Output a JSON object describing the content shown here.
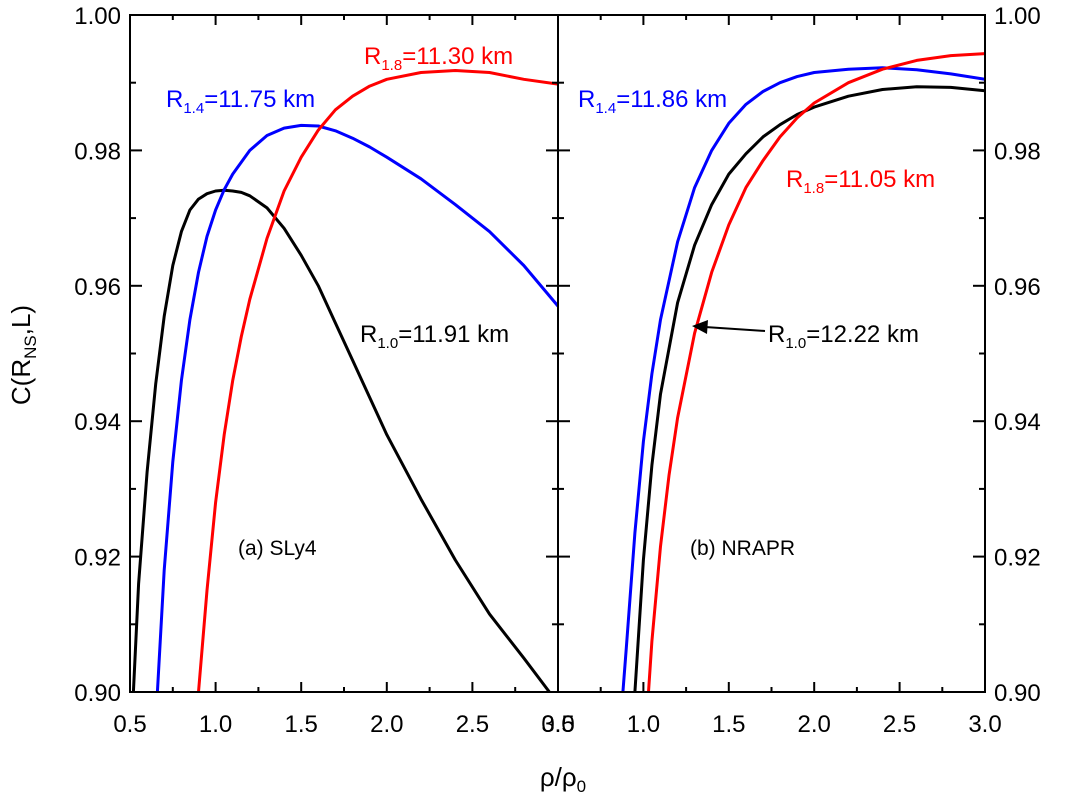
{
  "chart_data": [
    {
      "type": "line",
      "panel_label": "(a) SLy4",
      "xlabel": "ρ/ρ",
      "xlabel_sub": "0",
      "ylabel": "C(R",
      "ylabel_sub": "NS",
      "ylabel_end": ",L)",
      "xlim": [
        0.5,
        3.0
      ],
      "ylim": [
        0.9,
        1.0
      ],
      "xticks": [
        "0.5",
        "1.0",
        "1.5",
        "2.0",
        "2.5",
        "3.0"
      ],
      "yticks": [
        "0.90",
        "0.92",
        "0.94",
        "0.96",
        "0.98",
        "1.00"
      ],
      "grid": false,
      "series": [
        {
          "label_main": "R",
          "label_sub": "1.0",
          "label_rest": "=11.91 km",
          "color": "#000000",
          "x": [
            0.52,
            0.55,
            0.6,
            0.65,
            0.7,
            0.75,
            0.8,
            0.85,
            0.9,
            0.95,
            1.0,
            1.05,
            1.1,
            1.15,
            1.2,
            1.3,
            1.4,
            1.5,
            1.6,
            1.7,
            1.8,
            1.9,
            2.0,
            2.2,
            2.4,
            2.6,
            2.8,
            2.95
          ],
          "y": [
            0.9,
            0.916,
            0.9325,
            0.9455,
            0.9555,
            0.963,
            0.968,
            0.9712,
            0.9728,
            0.9736,
            0.974,
            0.9741,
            0.974,
            0.9738,
            0.9733,
            0.9715,
            0.9685,
            0.9645,
            0.96,
            0.9545,
            0.949,
            0.9435,
            0.938,
            0.9285,
            0.9195,
            0.9115,
            0.905,
            0.9
          ]
        },
        {
          "label_main": "R",
          "label_sub": "1.4",
          "label_rest": "=11.75 km",
          "color": "#0000ff",
          "x": [
            0.66,
            0.7,
            0.75,
            0.8,
            0.85,
            0.9,
            0.95,
            1.0,
            1.05,
            1.1,
            1.2,
            1.3,
            1.4,
            1.5,
            1.6,
            1.7,
            1.8,
            1.9,
            2.0,
            2.2,
            2.4,
            2.6,
            2.8,
            3.0
          ],
          "y": [
            0.9,
            0.918,
            0.934,
            0.946,
            0.955,
            0.962,
            0.9673,
            0.9712,
            0.9742,
            0.9765,
            0.98,
            0.9822,
            0.9833,
            0.9837,
            0.9836,
            0.9829,
            0.9818,
            0.9805,
            0.979,
            0.9758,
            0.972,
            0.968,
            0.963,
            0.957
          ]
        },
        {
          "label_main": "R",
          "label_sub": "1.8",
          "label_rest": "=11.30 km",
          "color": "#ff0000",
          "x": [
            0.9,
            0.95,
            1.0,
            1.05,
            1.1,
            1.15,
            1.2,
            1.3,
            1.4,
            1.5,
            1.6,
            1.7,
            1.8,
            1.9,
            2.0,
            2.2,
            2.4,
            2.6,
            2.8,
            3.0
          ],
          "y": [
            0.9,
            0.915,
            0.928,
            0.938,
            0.946,
            0.9525,
            0.958,
            0.967,
            0.974,
            0.979,
            0.983,
            0.986,
            0.988,
            0.9895,
            0.9905,
            0.9915,
            0.9918,
            0.9915,
            0.9905,
            0.9898
          ]
        }
      ]
    },
    {
      "type": "line",
      "panel_label": "(b) NRAPR",
      "xlim": [
        0.5,
        3.0
      ],
      "ylim": [
        0.9,
        1.0
      ],
      "xticks": [
        "0.5",
        "1.0",
        "1.5",
        "2.0",
        "2.5",
        "3.0"
      ],
      "yticks": [
        "0.90",
        "0.92",
        "0.94",
        "0.96",
        "0.98",
        "1.00"
      ],
      "grid": false,
      "series": [
        {
          "label_main": "R",
          "label_sub": "1.0",
          "label_rest": "=12.22 km",
          "color": "#000000",
          "x": [
            0.95,
            1.0,
            1.05,
            1.1,
            1.2,
            1.3,
            1.4,
            1.5,
            1.6,
            1.7,
            1.8,
            1.9,
            2.0,
            2.2,
            2.4,
            2.6,
            2.8,
            3.0
          ],
          "y": [
            0.9,
            0.9195,
            0.9335,
            0.944,
            0.9575,
            0.966,
            0.972,
            0.9765,
            0.9795,
            0.982,
            0.9838,
            0.9853,
            0.9864,
            0.988,
            0.989,
            0.9894,
            0.9893,
            0.9888
          ]
        },
        {
          "label_main": "R",
          "label_sub": "1.4",
          "label_rest": "=11.86 km",
          "color": "#0000ff",
          "x": [
            0.88,
            0.9,
            0.95,
            1.0,
            1.05,
            1.1,
            1.2,
            1.3,
            1.4,
            1.5,
            1.6,
            1.7,
            1.8,
            1.9,
            2.0,
            2.2,
            2.4,
            2.6,
            2.8,
            3.0
          ],
          "y": [
            0.9,
            0.9065,
            0.9235,
            0.937,
            0.947,
            0.955,
            0.9665,
            0.9745,
            0.98,
            0.984,
            0.9868,
            0.9887,
            0.99,
            0.9909,
            0.9915,
            0.992,
            0.9922,
            0.9919,
            0.9913,
            0.9905
          ]
        },
        {
          "label_main": "R",
          "label_sub": "1.8",
          "label_rest": "=11.05 km",
          "color": "#ff0000",
          "x": [
            1.03,
            1.05,
            1.1,
            1.15,
            1.2,
            1.3,
            1.4,
            1.5,
            1.6,
            1.7,
            1.8,
            1.9,
            2.0,
            2.2,
            2.4,
            2.6,
            2.8,
            3.0
          ],
          "y": [
            0.9,
            0.9075,
            0.9215,
            0.932,
            0.9405,
            0.953,
            0.962,
            0.969,
            0.9745,
            0.9785,
            0.982,
            0.9848,
            0.987,
            0.99,
            0.992,
            0.9933,
            0.994,
            0.9943
          ]
        }
      ]
    }
  ]
}
